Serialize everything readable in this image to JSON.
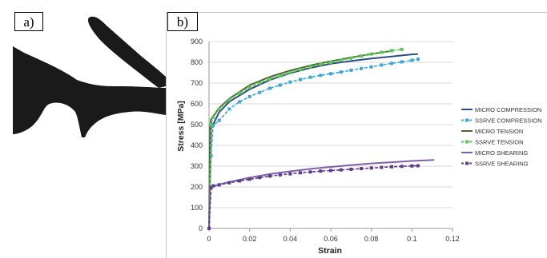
{
  "panels": {
    "a_label": "a)",
    "b_label": "b)"
  },
  "chart_data": {
    "type": "line",
    "xlabel": "Strain",
    "ylabel": "Stress [MPa]",
    "xlim": [
      0,
      0.12
    ],
    "ylim": [
      0,
      900
    ],
    "xticks": [
      "0",
      "0.02",
      "0.04",
      "0.06",
      "0.08",
      "0.1",
      "0.12"
    ],
    "yticks": [
      "0",
      "100",
      "200",
      "300",
      "400",
      "500",
      "600",
      "700",
      "800",
      "900"
    ],
    "grid": "horizontal",
    "legend_position": "right",
    "series": [
      {
        "name": "MICRO COMPRESSION",
        "color": "#2e4f7e",
        "marker": "none",
        "x": [
          0,
          0.001,
          0.005,
          0.01,
          0.02,
          0.03,
          0.04,
          0.05,
          0.06,
          0.07,
          0.08,
          0.09,
          0.1,
          0.103
        ],
        "y": [
          0,
          480,
          560,
          610,
          670,
          715,
          748,
          773,
          793,
          806,
          818,
          828,
          838,
          840
        ]
      },
      {
        "name": "SSRVE COMPRESSION",
        "color": "#3da6dd",
        "marker": "square",
        "x": [
          0,
          0.001,
          0.002,
          0.005,
          0.01,
          0.015,
          0.02,
          0.025,
          0.03,
          0.035,
          0.04,
          0.045,
          0.05,
          0.055,
          0.06,
          0.065,
          0.07,
          0.075,
          0.08,
          0.085,
          0.09,
          0.095,
          0.1,
          0.103
        ],
        "y": [
          0,
          350,
          495,
          520,
          575,
          610,
          635,
          655,
          675,
          690,
          705,
          717,
          728,
          737,
          745,
          753,
          762,
          770,
          778,
          787,
          795,
          802,
          810,
          815
        ]
      },
      {
        "name": "MICRO TENSION",
        "color": "#4e6a2a",
        "marker": "none",
        "x": [
          0,
          0.0005,
          0.001,
          0.005,
          0.01,
          0.02,
          0.03,
          0.04,
          0.05,
          0.06,
          0.07,
          0.08,
          0.09
        ],
        "y": [
          0,
          490,
          525,
          580,
          625,
          690,
          730,
          760,
          785,
          805,
          823,
          840,
          855
        ]
      },
      {
        "name": "SSRVE TENSION",
        "color": "#5cc45a",
        "marker": "square",
        "x": [
          0,
          0.001,
          0.002,
          0.005,
          0.01,
          0.015,
          0.02,
          0.025,
          0.03,
          0.035,
          0.04,
          0.045,
          0.05,
          0.055,
          0.06,
          0.065,
          0.07,
          0.075,
          0.08,
          0.085,
          0.09,
          0.095
        ],
        "y": [
          0,
          500,
          535,
          575,
          620,
          652,
          680,
          700,
          720,
          735,
          750,
          765,
          778,
          790,
          800,
          810,
          820,
          830,
          840,
          848,
          856,
          862
        ]
      },
      {
        "name": "MICRO SHEARING",
        "color": "#8060a8",
        "marker": "none",
        "x": [
          0,
          0.0005,
          0.001,
          0.005,
          0.01,
          0.02,
          0.03,
          0.04,
          0.05,
          0.06,
          0.07,
          0.08,
          0.09,
          0.1,
          0.111
        ],
        "y": [
          0,
          185,
          198,
          212,
          224,
          245,
          262,
          275,
          287,
          296,
          305,
          313,
          319,
          325,
          330
        ]
      },
      {
        "name": "SSRVE SHEARING",
        "color": "#5c3a8c",
        "marker": "square",
        "x": [
          0,
          0.001,
          0.002,
          0.005,
          0.01,
          0.015,
          0.02,
          0.025,
          0.03,
          0.035,
          0.04,
          0.045,
          0.05,
          0.055,
          0.06,
          0.065,
          0.07,
          0.075,
          0.08,
          0.085,
          0.09,
          0.095,
          0.1,
          0.103
        ],
        "y": [
          0,
          195,
          205,
          210,
          220,
          229,
          237,
          245,
          252,
          258,
          263,
          268,
          272,
          276,
          279,
          282,
          285,
          288,
          291,
          294,
          297,
          299,
          301,
          302
        ]
      }
    ]
  }
}
